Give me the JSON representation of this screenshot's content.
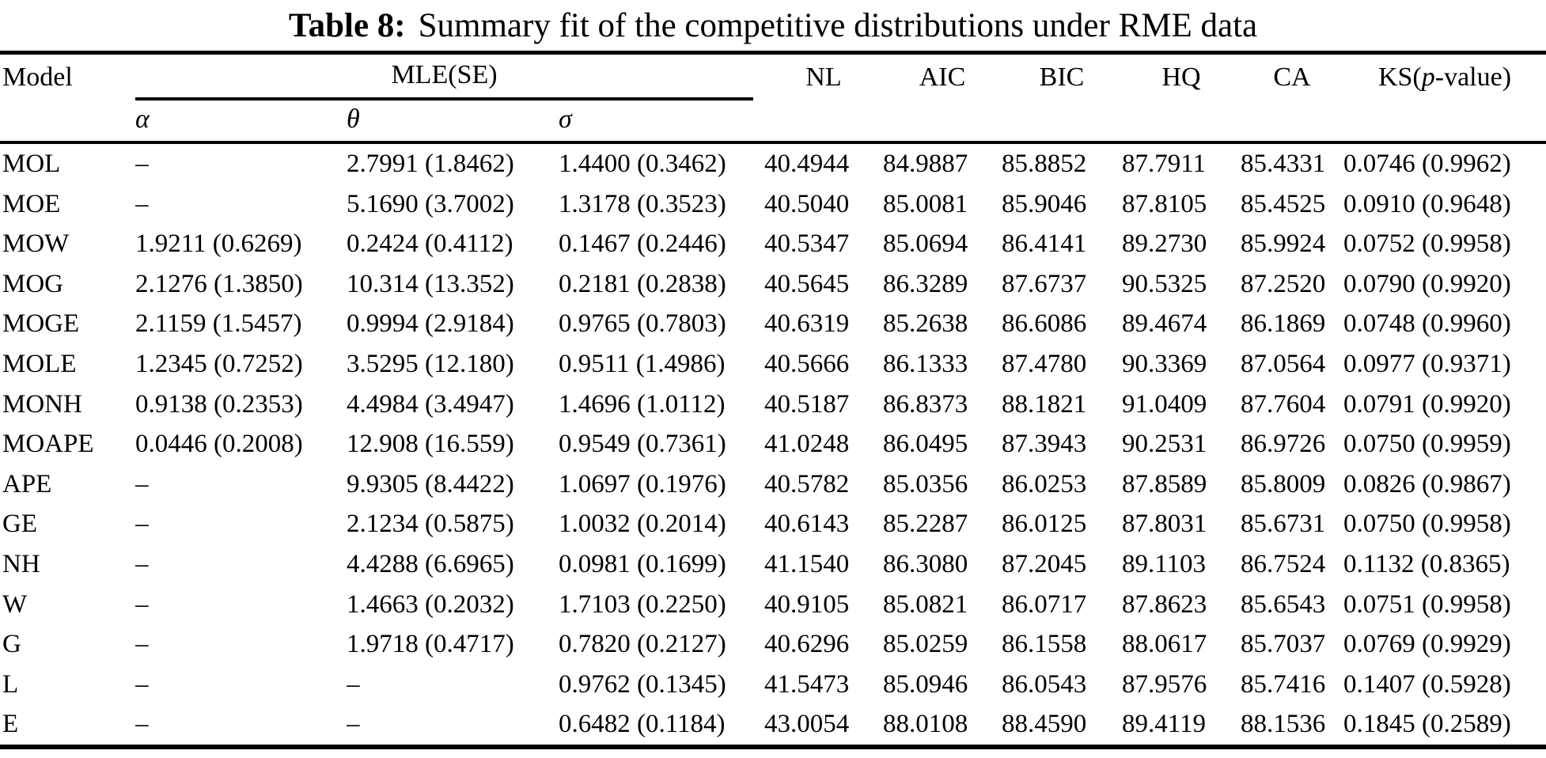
{
  "title": {
    "prefix": "Table 8:",
    "text": "Summary fit of the competitive distributions under RME data"
  },
  "table": {
    "header": {
      "model": "Model",
      "mle": "MLE(SE)",
      "alpha": "α",
      "theta": "θ",
      "sigma": "σ",
      "stats": [
        "NL",
        "AIC",
        "BIC",
        "HQ",
        "CA"
      ],
      "ks_prefix": "KS(",
      "ks_italic": "p",
      "ks_suffix": "-value)"
    },
    "rows": [
      {
        "model": "MOL",
        "alpha": "–",
        "theta": "2.7991 (1.8462)",
        "sigma": "1.4400 (0.3462)",
        "nl": "40.4944",
        "aic": "84.9887",
        "bic": "85.8852",
        "hq": "87.7911",
        "ca": "85.4331",
        "ks": "0.0746 (0.9962)"
      },
      {
        "model": "MOE",
        "alpha": "–",
        "theta": "5.1690 (3.7002)",
        "sigma": "1.3178 (0.3523)",
        "nl": "40.5040",
        "aic": "85.0081",
        "bic": "85.9046",
        "hq": "87.8105",
        "ca": "85.4525",
        "ks": "0.0910 (0.9648)"
      },
      {
        "model": "MOW",
        "alpha": "1.9211 (0.6269)",
        "theta": "0.2424 (0.4112)",
        "sigma": "0.1467 (0.2446)",
        "nl": "40.5347",
        "aic": "85.0694",
        "bic": "86.4141",
        "hq": "89.2730",
        "ca": "85.9924",
        "ks": "0.0752 (0.9958)"
      },
      {
        "model": "MOG",
        "alpha": "2.1276 (1.3850)",
        "theta": "10.314 (13.352)",
        "sigma": "0.2181 (0.2838)",
        "nl": "40.5645",
        "aic": "86.3289",
        "bic": "87.6737",
        "hq": "90.5325",
        "ca": "87.2520",
        "ks": "0.0790 (0.9920)"
      },
      {
        "model": "MOGE",
        "alpha": "2.1159 (1.5457)",
        "theta": "0.9994 (2.9184)",
        "sigma": "0.9765 (0.7803)",
        "nl": "40.6319",
        "aic": "85.2638",
        "bic": "86.6086",
        "hq": "89.4674",
        "ca": "86.1869",
        "ks": "0.0748 (0.9960)"
      },
      {
        "model": "MOLE",
        "alpha": "1.2345 (0.7252)",
        "theta": "3.5295 (12.180)",
        "sigma": "0.9511 (1.4986)",
        "nl": "40.5666",
        "aic": "86.1333",
        "bic": "87.4780",
        "hq": "90.3369",
        "ca": "87.0564",
        "ks": "0.0977 (0.9371)"
      },
      {
        "model": "MONH",
        "alpha": "0.9138 (0.2353)",
        "theta": "4.4984 (3.4947)",
        "sigma": "1.4696 (1.0112)",
        "nl": "40.5187",
        "aic": "86.8373",
        "bic": "88.1821",
        "hq": "91.0409",
        "ca": "87.7604",
        "ks": "0.0791 (0.9920)"
      },
      {
        "model": "MOAPE",
        "alpha": "0.0446 (0.2008)",
        "theta": "12.908 (16.559)",
        "sigma": "0.9549 (0.7361)",
        "nl": "41.0248",
        "aic": "86.0495",
        "bic": "87.3943",
        "hq": "90.2531",
        "ca": "86.9726",
        "ks": "0.0750 (0.9959)"
      },
      {
        "model": "APE",
        "alpha": "–",
        "theta": "9.9305 (8.4422)",
        "sigma": "1.0697 (0.1976)",
        "nl": "40.5782",
        "aic": "85.0356",
        "bic": "86.0253",
        "hq": "87.8589",
        "ca": "85.8009",
        "ks": "0.0826 (0.9867)"
      },
      {
        "model": "GE",
        "alpha": "–",
        "theta": "2.1234 (0.5875)",
        "sigma": "1.0032 (0.2014)",
        "nl": "40.6143",
        "aic": "85.2287",
        "bic": "86.0125",
        "hq": "87.8031",
        "ca": "85.6731",
        "ks": "0.0750 (0.9958)"
      },
      {
        "model": "NH",
        "alpha": "–",
        "theta": "4.4288 (6.6965)",
        "sigma": "0.0981 (0.1699)",
        "nl": "41.1540",
        "aic": "86.3080",
        "bic": "87.2045",
        "hq": "89.1103",
        "ca": "86.7524",
        "ks": "0.1132 (0.8365)"
      },
      {
        "model": "W",
        "alpha": "–",
        "theta": "1.4663 (0.2032)",
        "sigma": "1.7103 (0.2250)",
        "nl": "40.9105",
        "aic": "85.0821",
        "bic": "86.0717",
        "hq": "87.8623",
        "ca": "85.6543",
        "ks": "0.0751 (0.9958)"
      },
      {
        "model": "G",
        "alpha": "–",
        "theta": "1.9718 (0.4717)",
        "sigma": "0.7820 (0.2127)",
        "nl": "40.6296",
        "aic": "85.0259",
        "bic": "86.1558",
        "hq": "88.0617",
        "ca": "85.7037",
        "ks": "0.0769 (0.9929)"
      },
      {
        "model": "L",
        "alpha": "–",
        "theta": "–",
        "sigma": "0.9762 (0.1345)",
        "nl": "41.5473",
        "aic": "85.0946",
        "bic": "86.0543",
        "hq": "87.9576",
        "ca": "85.7416",
        "ks": "0.1407 (0.5928)"
      },
      {
        "model": "E",
        "alpha": "–",
        "theta": "–",
        "sigma": "0.6482 (0.1184)",
        "nl": "43.0054",
        "aic": "88.0108",
        "bic": "88.4590",
        "hq": "89.4119",
        "ca": "88.1536",
        "ks": "0.1845 (0.2589)"
      }
    ]
  }
}
